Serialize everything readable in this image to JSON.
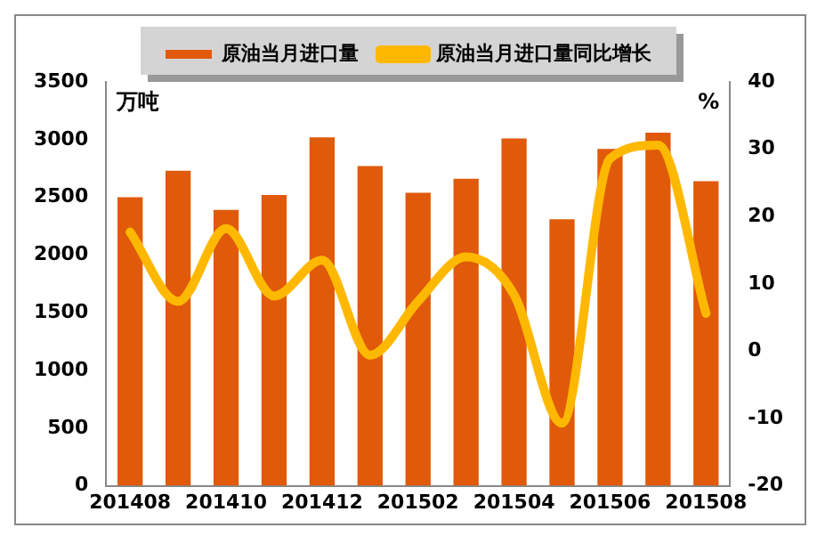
{
  "chart_data": {
    "type": "bar",
    "ylabel": "万吨",
    "y2label": "%",
    "categories": [
      "201408",
      null,
      "201410",
      null,
      "201412",
      null,
      "201502",
      null,
      "201504",
      null,
      "201506",
      null,
      "201508"
    ],
    "series": [
      {
        "name": "原油当月进口量",
        "color": "#e05a0a",
        "values": [
          2500,
          2730,
          2390,
          2520,
          3020,
          2770,
          2540,
          2660,
          3010,
          2310,
          2920,
          3060,
          2640
        ]
      },
      {
        "name": "原油当月进口量同比增长",
        "type": "line",
        "axis": "y2",
        "color": "#ffb800",
        "values": [
          17.7,
          7.4,
          18.2,
          8.2,
          13.5,
          -0.6,
          7.4,
          14,
          8.4,
          -10.7,
          28.6,
          30.6,
          5.6
        ]
      }
    ],
    "ylim": [
      0,
      3500
    ],
    "yticks": [
      0,
      500,
      1000,
      1500,
      2000,
      2500,
      3000,
      3500
    ],
    "y2lim": [
      -20,
      40
    ],
    "y2ticks": [
      -20,
      -10,
      0,
      10,
      20,
      30,
      40
    ],
    "grid": false,
    "legend": "top",
    "marker": "none",
    "line_style": "solid"
  }
}
